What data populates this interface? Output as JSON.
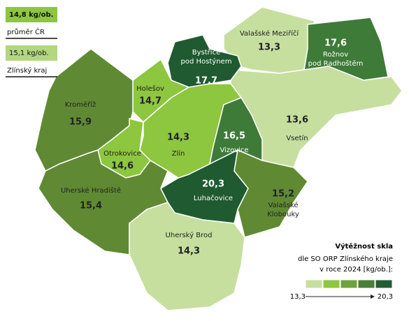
{
  "reference": [
    {
      "value": "14,8 kg/ob.",
      "label": "průměr ČR",
      "color": "#8dc63f"
    },
    {
      "value": "15,1 kg/ob.",
      "label": "Zlínský kraj",
      "color": "#b3d77f"
    }
  ],
  "regions": [
    {
      "name": [
        "Valašské Meziříčí"
      ],
      "value": "13,3",
      "color": "#c6df9f"
    },
    {
      "name": [
        "Rožnov",
        "pod Radhoštěm"
      ],
      "value": "17,6",
      "color": "#3e7a38"
    },
    {
      "name": [
        "Vsetín"
      ],
      "value": "13,6",
      "color": "#c6df9f"
    },
    {
      "name": [
        "Bystřice",
        "pod Hostýnem"
      ],
      "value": "17,7",
      "color": "#1f5a30"
    },
    {
      "name": [
        "Holešov"
      ],
      "value": "14,7",
      "color": "#8dc63f"
    },
    {
      "name": [
        "Kroměříž"
      ],
      "value": "15,9",
      "color": "#5f8a33"
    },
    {
      "name": [
        "Zlín"
      ],
      "value": "14,3",
      "color": "#8dc63f"
    },
    {
      "name": [
        "Otrokovice"
      ],
      "value": "14,6",
      "color": "#8dc63f"
    },
    {
      "name": [
        "Vizovice"
      ],
      "value": "16,5",
      "color": "#3e7a38"
    },
    {
      "name": [
        "Uherské Hradiště"
      ],
      "value": "15,4",
      "color": "#5f8a33"
    },
    {
      "name": [
        "Luhačovice"
      ],
      "value": "20,3",
      "color": "#1f5a30"
    },
    {
      "name": [
        "Valašské",
        "Klobouky"
      ],
      "value": "15,2",
      "color": "#5f8a33"
    },
    {
      "name": [
        "Uherský Brod"
      ],
      "value": "14,3",
      "color": "#c6df9f"
    }
  ],
  "legend": {
    "title": "Výtěžnost skla",
    "subtitle": [
      "dle SO ORP Zlínského kraje",
      "v roce 2024 [kg/ob.]:"
    ],
    "colors": [
      "#c6df9f",
      "#8dc63f",
      "#6fa23a",
      "#4a7d35",
      "#255c34"
    ],
    "min": "13,3",
    "max": "20,3"
  }
}
